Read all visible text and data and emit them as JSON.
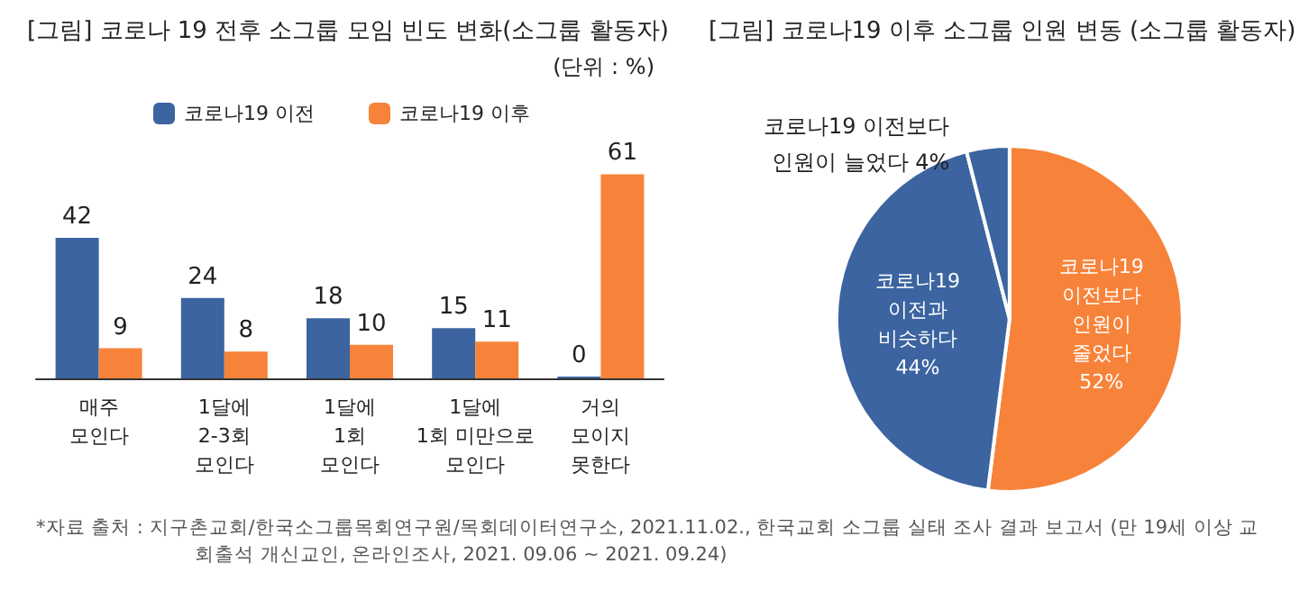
{
  "chart_data": [
    {
      "type": "bar",
      "title": "[그림] 코로나 19 전후 소그룹 모임 빈도 변화(소그룹 활동자)",
      "subtitle": "(단위 : %)",
      "categories": [
        "매주\n모인다",
        "1달에\n2-3회\n모인다",
        "1달에\n1회\n모인다",
        "1달에\n1회 미만으로\n모인다",
        "거의\n모이지\n못한다"
      ],
      "series": [
        {
          "name": "코로나19 이전",
          "color": "#3b64a0",
          "values": [
            42,
            24,
            18,
            15,
            0
          ]
        },
        {
          "name": "코로나19 이후",
          "color": "#f7833a",
          "values": [
            9,
            8,
            10,
            11,
            61
          ]
        }
      ],
      "data_labels": true,
      "legend": "top",
      "annotations": [
        "*자료 출처 : 지구촌교회/한국소그룹목회연구원/목회데이터연구소, 2021.11.02., 한국교회 소그룹 실태 조사 결과 보고서 (만 19세 이상 교회출석 개신교인, 온라인조사, 2021. 09.06 ~ 2021. 09.24)"
      ]
    },
    {
      "type": "pie",
      "title": "[그림] 코로나19 이후 소그룹 인원 변동 (소그룹 활동자)",
      "categories": [
        "코로나19\n이전보다\n인원이\n줄었다",
        "코로나19\n이전과\n비슷하다",
        "코로나19 이전보다\n인원이 늘었다"
      ],
      "values": [
        52,
        44,
        4
      ],
      "colors": [
        "#f7833a",
        "#3b64a0",
        "#3b64a0"
      ],
      "value_labels": [
        "52%",
        "44%",
        "4%"
      ]
    }
  ]
}
